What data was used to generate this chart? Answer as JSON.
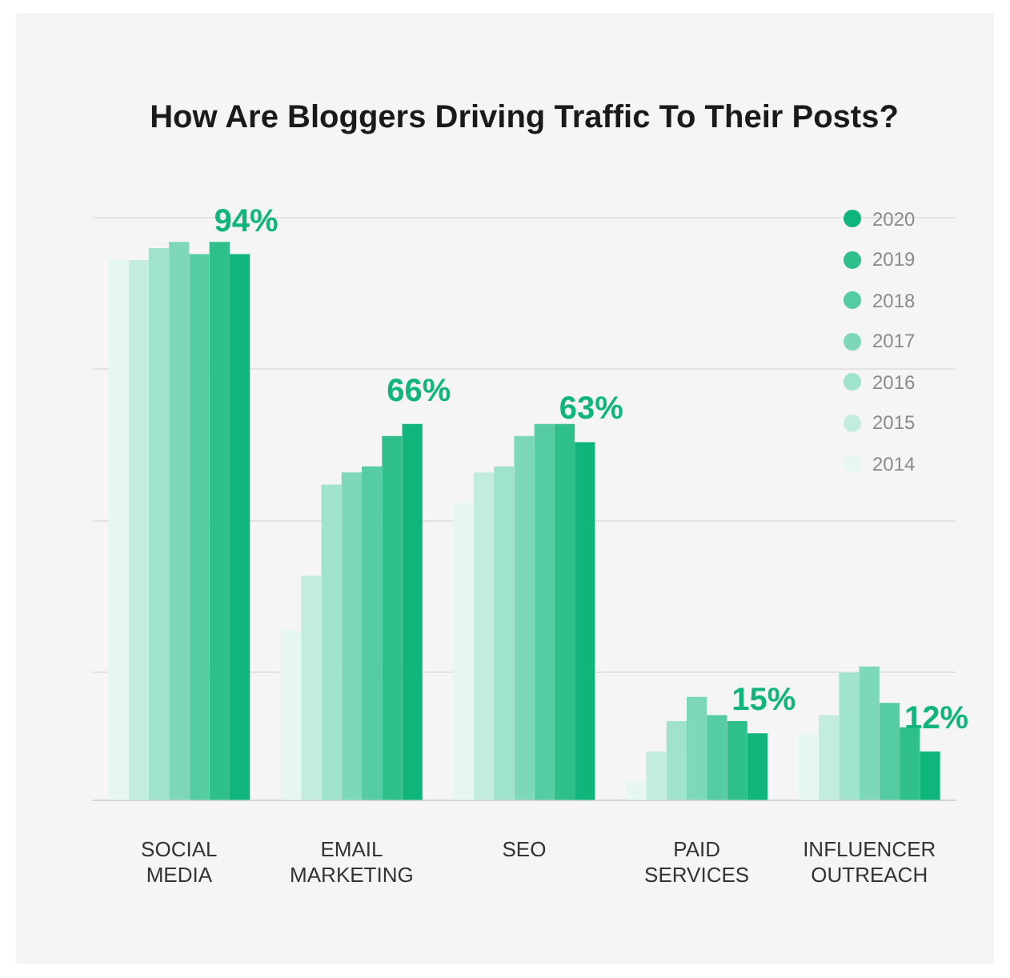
{
  "chart_data": {
    "type": "bar",
    "title": "How Are Bloggers Driving Traffic To Their Posts?",
    "categories": [
      "SOCIAL MEDIA",
      "EMAIL MARKETING",
      "SEO",
      "PAID SERVICES",
      "INFLUENCER OUTREACH"
    ],
    "series": [
      {
        "name": "2014",
        "color": "#e6f7f1",
        "values": [
          93,
          32,
          53,
          7,
          15
        ]
      },
      {
        "name": "2015",
        "color": "#c2eddd",
        "values": [
          93,
          41,
          58,
          12,
          18
        ]
      },
      {
        "name": "2016",
        "color": "#a0e3cb",
        "values": [
          95,
          56,
          59,
          17,
          25
        ]
      },
      {
        "name": "2017",
        "color": "#7dd8b7",
        "values": [
          96,
          58,
          64,
          21,
          26
        ]
      },
      {
        "name": "2018",
        "color": "#55cca2",
        "values": [
          94,
          59,
          66,
          18,
          20
        ]
      },
      {
        "name": "2019",
        "color": "#2fbf8b",
        "values": [
          96,
          64,
          66,
          17,
          16
        ]
      },
      {
        "name": "2020",
        "color": "#0fb57a",
        "values": [
          94,
          66,
          63,
          15,
          12
        ],
        "value_labels": [
          "94%",
          "66%",
          "63%",
          "15%",
          "12%"
        ]
      }
    ],
    "ylim": [
      4,
      100
    ],
    "yticks": [
      {
        "value": 25,
        "label": null
      },
      {
        "value": 50,
        "label": null
      },
      {
        "value": 75,
        "label": null
      },
      {
        "value": 100,
        "label": null
      }
    ],
    "grid": "y",
    "tick_labels": "x",
    "legend": "top right",
    "marker": "circle"
  }
}
